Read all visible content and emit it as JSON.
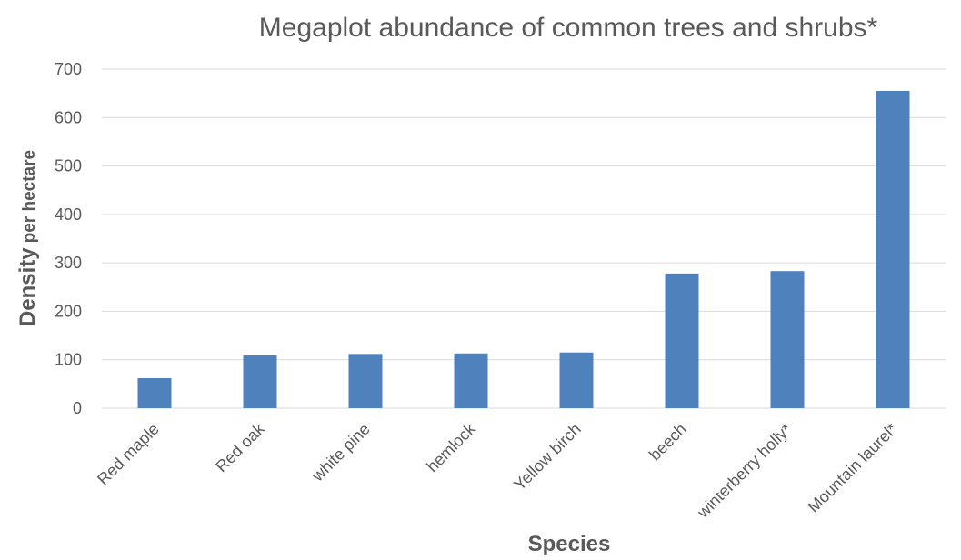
{
  "chart_data": {
    "type": "bar",
    "title": "Megaplot abundance of common trees and shrubs*",
    "xlabel": "Species",
    "ylabel_main": "Density",
    "ylabel_sub": "per hectare",
    "categories": [
      "Red maple",
      "Red oak",
      "white pine",
      "hemlock",
      "Yellow birch",
      "beech",
      "winterberry holly*",
      "Mountain laurel*"
    ],
    "values": [
      62,
      109,
      112,
      113,
      115,
      278,
      283,
      655
    ],
    "ylim": [
      0,
      700
    ],
    "yticks": [
      0,
      100,
      200,
      300,
      400,
      500,
      600,
      700
    ],
    "grid": true,
    "legend": "none",
    "bar_color": "#4f81bd"
  }
}
